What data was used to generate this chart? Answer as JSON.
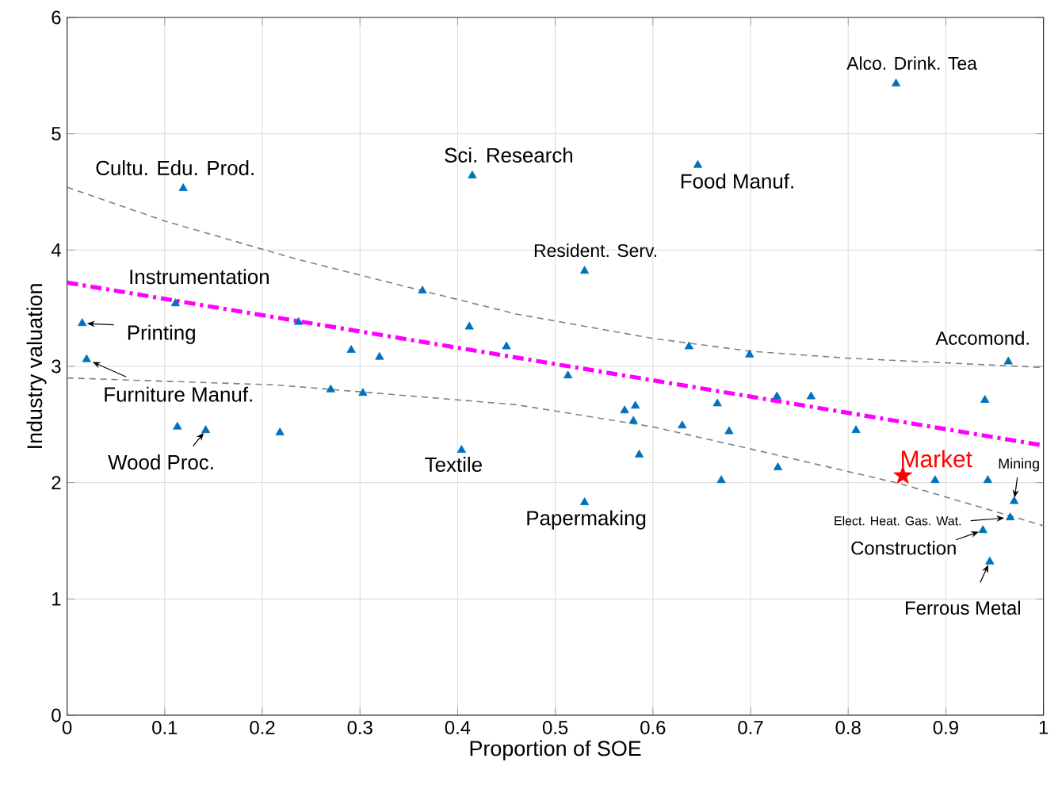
{
  "chart_data": {
    "type": "scatter",
    "xlabel": "Proportion of SOE",
    "ylabel": "Industry valuation",
    "xlim": [
      0,
      1
    ],
    "ylim": [
      0,
      6
    ],
    "xticks": [
      0,
      0.1,
      0.2,
      0.3,
      0.4,
      0.5,
      0.6,
      0.7,
      0.8,
      0.9,
      1
    ],
    "yticks": [
      0,
      1,
      2,
      3,
      4,
      5,
      6
    ],
    "grid": true,
    "series": [
      {
        "color": "#0072bd",
        "marker": "triangle",
        "x": [
          0.119,
          0.415,
          0.364,
          0.111,
          0.0155,
          0.237,
          0.412,
          0.45,
          0.291,
          0.32,
          0.02,
          0.27,
          0.303,
          0.113,
          0.142,
          0.218,
          0.404,
          0.849,
          0.646,
          0.53,
          0.637,
          0.699,
          0.964,
          0.513,
          0.727,
          0.762,
          0.94,
          0.571,
          0.582,
          0.666,
          0.58,
          0.63,
          0.678,
          0.808,
          0.586,
          0.728,
          0.67,
          0.889,
          0.943,
          0.53,
          0.97,
          0.966,
          0.938,
          0.945
        ],
        "values": [
          4.53,
          4.64,
          3.65,
          3.54,
          3.37,
          3.38,
          3.34,
          3.17,
          3.14,
          3.08,
          3.06,
          2.8,
          2.77,
          2.48,
          2.45,
          2.43,
          2.28,
          5.43,
          4.73,
          3.82,
          3.17,
          3.1,
          3.04,
          2.92,
          2.74,
          2.74,
          2.71,
          2.62,
          2.66,
          2.68,
          2.53,
          2.49,
          2.44,
          2.45,
          2.24,
          2.13,
          2.02,
          2.02,
          2.02,
          1.83,
          1.84,
          1.7,
          1.59,
          1.32
        ]
      },
      {
        "name": "Market",
        "color": "#ff0000",
        "marker": "star",
        "x": [
          0.856
        ],
        "values": [
          2.06
        ]
      },
      {
        "type": "line",
        "color": "#ff00ff",
        "line_style": "dashdot",
        "x": [
          0,
          1
        ],
        "values": [
          3.72,
          2.32
        ]
      },
      {
        "type": "line",
        "color": "#808080",
        "line_style": "dashed",
        "x": [
          0,
          0.1,
          0.236,
          0.364,
          0.46,
          0.6,
          0.7,
          0.8,
          0.9,
          1
        ],
        "values": [
          4.54,
          4.25,
          3.92,
          3.65,
          3.45,
          3.24,
          3.13,
          3.07,
          3.03,
          2.99
        ]
      },
      {
        "type": "line",
        "color": "#808080",
        "line_style": "dashed",
        "x": [
          0,
          0.215,
          0.46,
          0.6,
          0.7,
          0.854,
          1
        ],
        "values": [
          2.9,
          2.84,
          2.67,
          2.48,
          2.29,
          1.99,
          1.63
        ]
      }
    ],
    "annotations": [
      {
        "text": "Cultu. Edu. Prod.",
        "x": 0.119,
        "y": 4.53
      },
      {
        "text": "Sci. Research",
        "x": 0.415,
        "y": 4.64
      },
      {
        "text": "Alco. Drink. Tea",
        "x": 0.849,
        "y": 5.43
      },
      {
        "text": "Food Manuf.",
        "x": 0.646,
        "y": 4.73
      },
      {
        "text": "Resident. Serv.",
        "x": 0.53,
        "y": 3.82
      },
      {
        "text": "Instrumentation",
        "x": 0.111,
        "y": 3.54
      },
      {
        "text": "Printing",
        "x": 0.0155,
        "y": 3.37
      },
      {
        "text": "Accomond.",
        "x": 0.964,
        "y": 3.04
      },
      {
        "text": "Furniture Manuf.",
        "x": 0.02,
        "y": 3.06
      },
      {
        "text": "Wood Proc.",
        "x": 0.142,
        "y": 2.45
      },
      {
        "text": "Textile",
        "x": 0.404,
        "y": 2.28
      },
      {
        "text": "Papermaking",
        "x": 0.53,
        "y": 1.83
      },
      {
        "text": "Mining",
        "x": 0.97,
        "y": 1.84
      },
      {
        "text": "Elect. Heat. Gas. Wat.",
        "x": 0.966,
        "y": 1.7
      },
      {
        "text": "Construction",
        "x": 0.938,
        "y": 1.59
      },
      {
        "text": "Ferrous Metal",
        "x": 0.945,
        "y": 1.32
      }
    ]
  }
}
